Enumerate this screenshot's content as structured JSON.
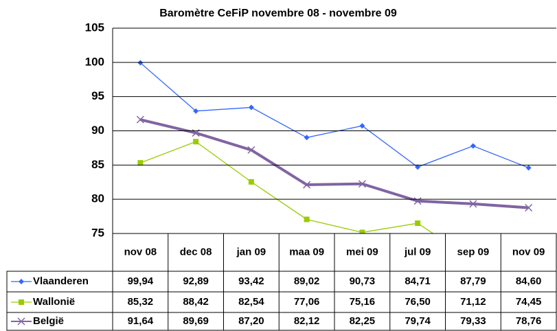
{
  "chart_data": {
    "type": "line",
    "title": "Baromètre CeFiP novembre 08 - novembre 09",
    "categories": [
      "nov 08",
      "dec 08",
      "jan 09",
      "maa 09",
      "mei 09",
      "jul 09",
      "sep 09",
      "nov 09"
    ],
    "series": [
      {
        "name": "Vlaanderen",
        "color": "#3366ff",
        "marker": "diamond",
        "values": [
          99.94,
          92.89,
          93.42,
          89.02,
          90.73,
          84.71,
          87.79,
          84.6
        ],
        "value_labels": [
          "99,94",
          "92,89",
          "93,42",
          "89,02",
          "90,73",
          "84,71",
          "87,79",
          "84,60"
        ]
      },
      {
        "name": "Wallonië",
        "color": "#99cc00",
        "marker": "square",
        "values": [
          85.32,
          88.42,
          82.54,
          77.06,
          75.16,
          76.5,
          71.12,
          74.45
        ],
        "value_labels": [
          "85,32",
          "88,42",
          "82,54",
          "77,06",
          "75,16",
          "76,50",
          "71,12",
          "74,45"
        ]
      },
      {
        "name": "België",
        "color": "#8064a2",
        "marker": "x",
        "values": [
          91.64,
          89.69,
          87.2,
          82.12,
          82.25,
          79.74,
          79.33,
          78.76
        ],
        "value_labels": [
          "91,64",
          "89,69",
          "87,20",
          "82,12",
          "82,25",
          "79,74",
          "79,33",
          "78,76"
        ]
      }
    ],
    "ylim": [
      75,
      105
    ],
    "yticks": [
      75,
      80,
      85,
      90,
      95,
      100,
      105
    ],
    "grid": true
  }
}
